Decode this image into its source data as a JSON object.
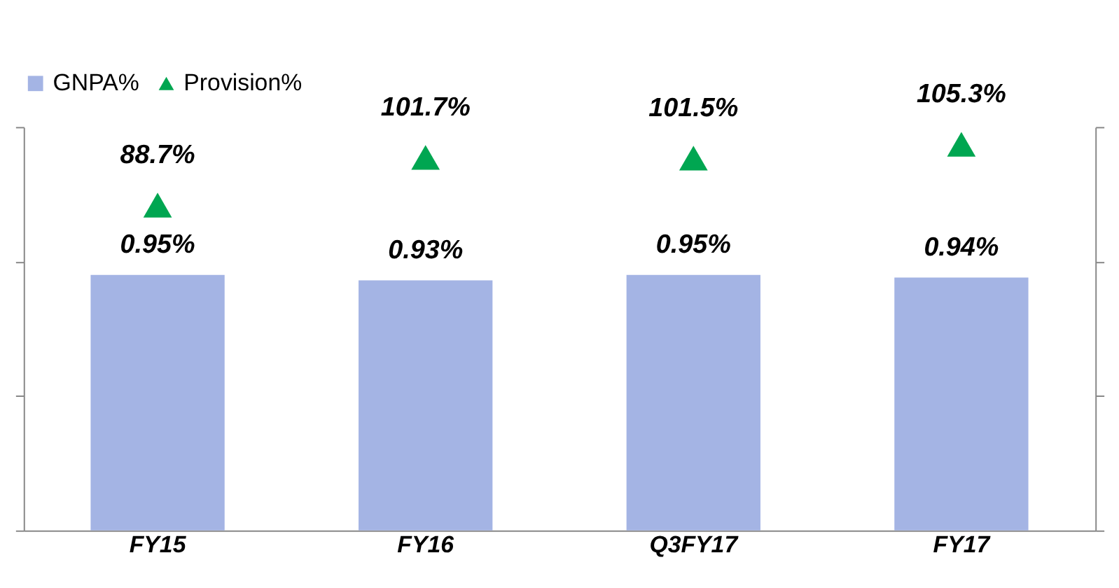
{
  "chart_data": {
    "type": "bar",
    "categories": [
      "FY15",
      "FY16",
      "Q3FY17",
      "FY17"
    ],
    "series": [
      {
        "name": "GNPA%",
        "color": "#a4b4e4",
        "values": [
          0.95,
          0.93,
          0.95,
          0.94
        ],
        "value_labels": [
          "0.95%",
          "0.93%",
          "0.95%",
          "0.94%"
        ]
      },
      {
        "name": "Provision%",
        "type": "scatter",
        "axis": "y2",
        "marker": "triangle",
        "color": "#00a651",
        "values": [
          88.7,
          101.7,
          101.5,
          105.3
        ],
        "value_labels": [
          "88.7%",
          "101.7%",
          "101.5%",
          "105.3%"
        ]
      }
    ],
    "ylim": [
      0,
      1.5
    ],
    "yticks": [
      {
        "value": 0,
        "label": null
      },
      {
        "value": 0.5,
        "label": null
      },
      {
        "value": 1,
        "label": null
      },
      {
        "value": 1.5,
        "label": null
      }
    ],
    "tick_labels": "x",
    "grid": false,
    "legend": "top left"
  }
}
